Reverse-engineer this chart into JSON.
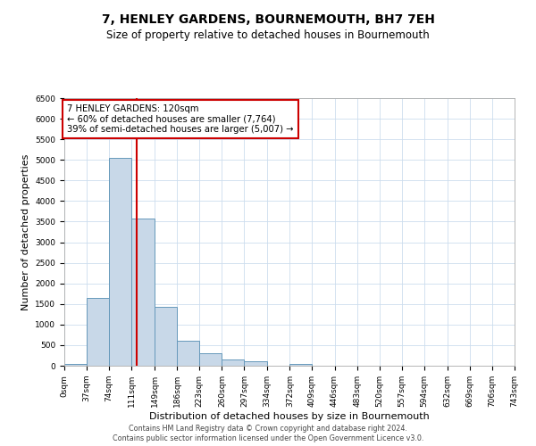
{
  "title": "7, HENLEY GARDENS, BOURNEMOUTH, BH7 7EH",
  "subtitle": "Size of property relative to detached houses in Bournemouth",
  "xlabel": "Distribution of detached houses by size in Bournemouth",
  "ylabel": "Number of detached properties",
  "bin_edges": [
    0,
    37,
    74,
    111,
    149,
    186,
    223,
    260,
    297,
    334,
    372,
    409,
    446,
    483,
    520,
    557,
    594,
    632,
    669,
    706,
    743
  ],
  "bin_counts": [
    50,
    1650,
    5050,
    3580,
    1420,
    610,
    300,
    150,
    100,
    0,
    50,
    0,
    0,
    0,
    0,
    0,
    0,
    0,
    0,
    0
  ],
  "bar_facecolor": "#c8d8e8",
  "bar_edgecolor": "#6699bb",
  "vline_x": 120,
  "vline_color": "#cc0000",
  "annotation_title": "7 HENLEY GARDENS: 120sqm",
  "annotation_line1": "← 60% of detached houses are smaller (7,764)",
  "annotation_line2": "39% of semi-detached houses are larger (5,007) →",
  "annotation_box_edgecolor": "#cc0000",
  "ylim": [
    0,
    6500
  ],
  "yticks": [
    0,
    500,
    1000,
    1500,
    2000,
    2500,
    3000,
    3500,
    4000,
    4500,
    5000,
    5500,
    6000,
    6500
  ],
  "xtick_labels": [
    "0sqm",
    "37sqm",
    "74sqm",
    "111sqm",
    "149sqm",
    "186sqm",
    "223sqm",
    "260sqm",
    "297sqm",
    "334sqm",
    "372sqm",
    "409sqm",
    "446sqm",
    "483sqm",
    "520sqm",
    "557sqm",
    "594sqm",
    "632sqm",
    "669sqm",
    "706sqm",
    "743sqm"
  ],
  "footer_line1": "Contains HM Land Registry data © Crown copyright and database right 2024.",
  "footer_line2": "Contains public sector information licensed under the Open Government Licence v3.0.",
  "background_color": "#ffffff",
  "grid_color": "#ccddee",
  "title_fontsize": 10,
  "subtitle_fontsize": 8.5,
  "axis_label_fontsize": 8,
  "tick_fontsize": 6.5,
  "footer_fontsize": 5.8,
  "annot_fontsize": 7.2
}
